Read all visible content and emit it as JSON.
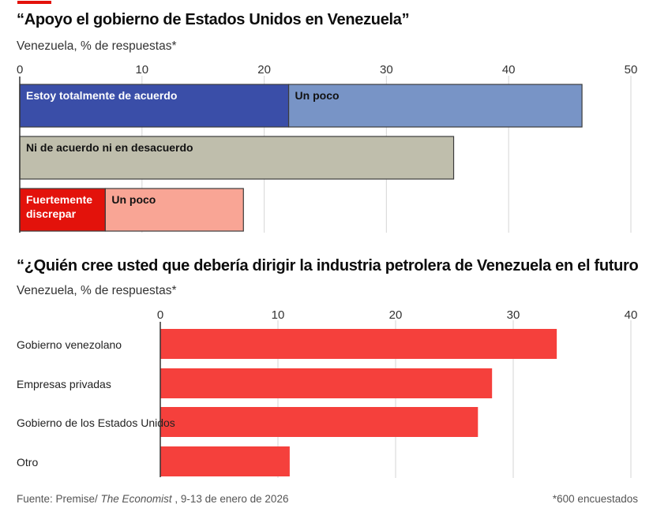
{
  "page": {
    "accent_color": "#e3120b",
    "footer": {
      "source_prefix": "Fuente: Premise/ ",
      "source_publication": "The Economist",
      "source_suffix": " , 9-13 de enero de 2026",
      "note": "*600 encuestados"
    }
  },
  "chart_data": [
    {
      "type": "bar",
      "orientation": "horizontal-stacked",
      "title": "“Apoyo el gobierno de Estados Unidos en Venezuela”",
      "subtitle": "Venezuela, % de respuestas*",
      "xlabel": "",
      "ylabel": "",
      "xlim": [
        0,
        50
      ],
      "ticks": [
        0,
        10,
        20,
        30,
        40,
        50
      ],
      "tick_labels": [
        "0",
        "10",
        "20",
        "30",
        "40",
        "50"
      ],
      "grid": true,
      "rows": [
        {
          "segments": [
            {
              "label": "Estoy totalmente de acuerdo",
              "value": 22,
              "color": "#3a4ea8",
              "label_color": "#ffffff"
            },
            {
              "label": "Un poco",
              "value": 24,
              "color": "#7894c6",
              "label_color": "#121212"
            }
          ]
        },
        {
          "segments": [
            {
              "label": "Ni de acuerdo ni en desacuerdo",
              "value": 35.5,
              "color": "#bfbeac",
              "label_color": "#121212"
            }
          ]
        },
        {
          "segments": [
            {
              "label": "Fuertemente discrepar",
              "label_lines": [
                "Fuertemente",
                "discrepar"
              ],
              "value": 7,
              "color": "#e3120b",
              "label_color": "#ffffff"
            },
            {
              "label": "Un poco",
              "value": 11.3,
              "color": "#f9a595",
              "label_color": "#121212"
            }
          ]
        }
      ]
    },
    {
      "type": "bar",
      "orientation": "horizontal",
      "title": "“¿Quién cree usted que debería dirigir la industria petrolera de Venezuela en el futuro",
      "subtitle": "Venezuela, % de respuestas*",
      "xlabel": "",
      "ylabel": "",
      "xlim": [
        0,
        40
      ],
      "ticks": [
        0,
        10,
        20,
        30,
        40
      ],
      "tick_labels": [
        "0",
        "10",
        "20",
        "30",
        "40"
      ],
      "grid": true,
      "bar_color": "#f5403c",
      "categories": [
        "Gobierno venezolano",
        "Empresas privadas",
        "Gobierno de los Estados Unidos",
        "Otro"
      ],
      "values": [
        33.7,
        28.2,
        27,
        11
      ]
    }
  ]
}
